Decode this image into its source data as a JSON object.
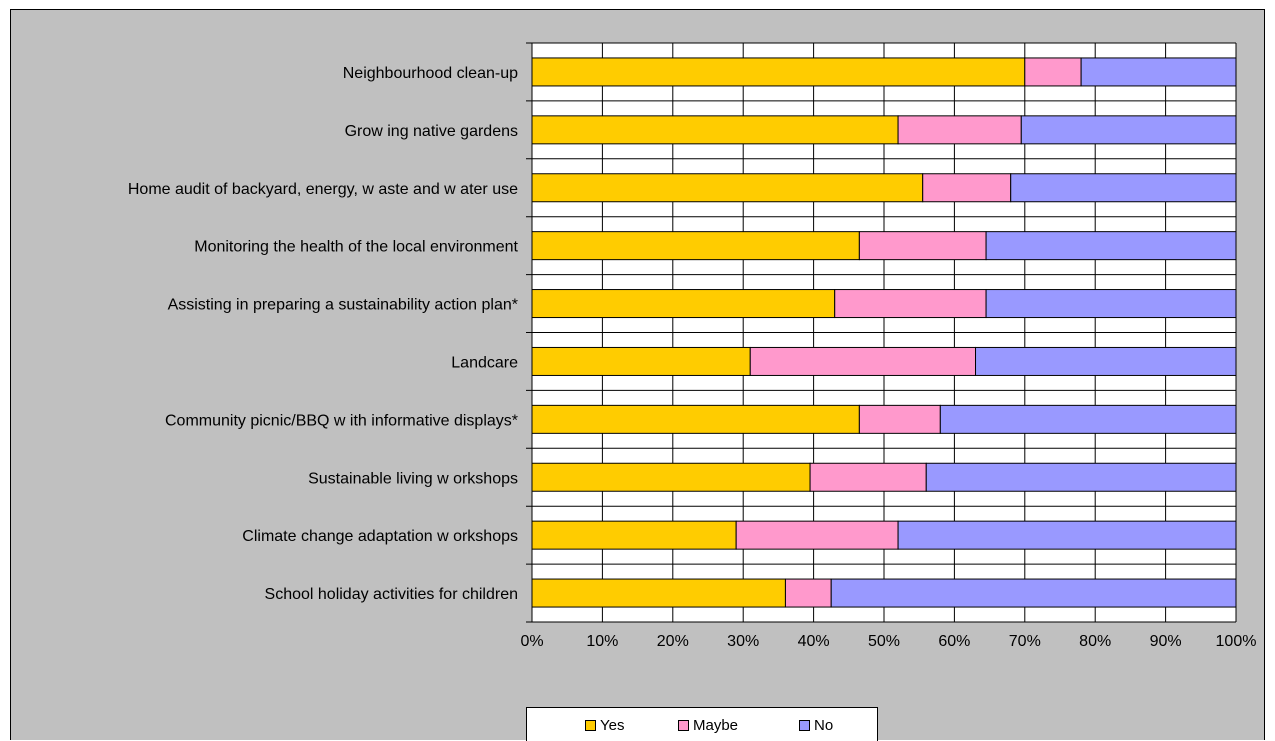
{
  "chart_data": {
    "type": "bar",
    "orientation": "horizontal",
    "stacked": "100%",
    "title": "",
    "xlabel": "",
    "ylabel": "",
    "xlim": [
      0,
      100
    ],
    "x_ticks": [
      "0%",
      "10%",
      "20%",
      "30%",
      "40%",
      "50%",
      "60%",
      "70%",
      "80%",
      "90%",
      "100%"
    ],
    "grid": true,
    "legend_position": "bottom",
    "categories": [
      "Neighbourhood clean-up",
      "Grow ing native gardens",
      "Home audit of backyard, energy, w aste and w ater use",
      "Monitoring the health of the local environment",
      "Assisting in preparing a sustainability action plan*",
      "Landcare",
      "Community picnic/BBQ w ith informative displays*",
      "Sustainable living w orkshops",
      "Climate change adaptation w orkshops",
      "School holiday activities for children"
    ],
    "series": [
      {
        "name": "Yes",
        "color": "#ffcc00",
        "values": [
          70,
          52,
          55.5,
          46.5,
          43,
          31,
          46.5,
          39.5,
          29,
          36
        ]
      },
      {
        "name": "Maybe",
        "color": "#ff99cc",
        "values": [
          8,
          17.5,
          12.5,
          18,
          21.5,
          32,
          11.5,
          16.5,
          23,
          6.5
        ]
      },
      {
        "name": "No",
        "color": "#9999ff",
        "values": [
          22,
          30.5,
          32,
          35.5,
          35.5,
          37,
          42,
          44,
          48,
          57.5
        ]
      }
    ]
  }
}
